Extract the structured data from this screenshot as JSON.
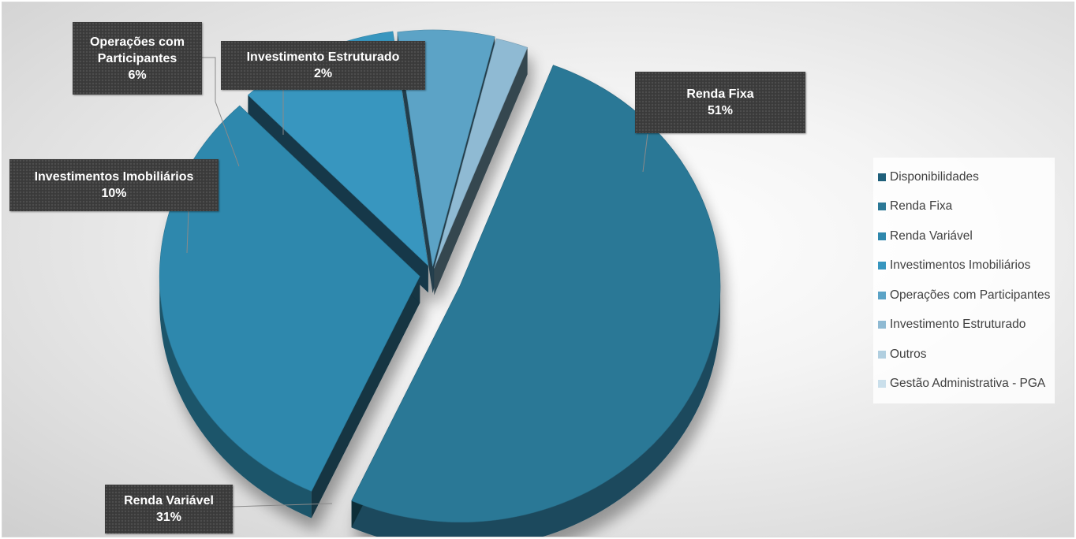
{
  "chart_data": {
    "type": "pie",
    "variant": "3d-exploded",
    "categories": [
      "Disponibilidades",
      "Renda Fixa",
      "Renda Variável",
      "Investimentos Imobiliários",
      "Operações com Participantes",
      "Investimento Estruturado",
      "Outros",
      "Gestão Administrativa - PGA"
    ],
    "values_pct": [
      0,
      51,
      31,
      10,
      6,
      2,
      0,
      0
    ],
    "colors": [
      "#1f5f7a",
      "#2b7896",
      "#2f88ad",
      "#3796bf",
      "#5ba3c6",
      "#8fbad3",
      "#b1cfe0",
      "#cadfeb"
    ],
    "data_labels": [
      {
        "lines": [
          "Renda Fixa",
          "51%"
        ]
      },
      {
        "lines": [
          "Renda Variável",
          "31%"
        ]
      },
      {
        "lines": [
          "Investimentos Imobiliários",
          "10%"
        ]
      },
      {
        "lines": [
          "Operações com",
          "Participantes",
          "6%"
        ]
      },
      {
        "lines": [
          "Investimento Estruturado",
          "2%"
        ]
      }
    ],
    "legend_position": "right"
  }
}
